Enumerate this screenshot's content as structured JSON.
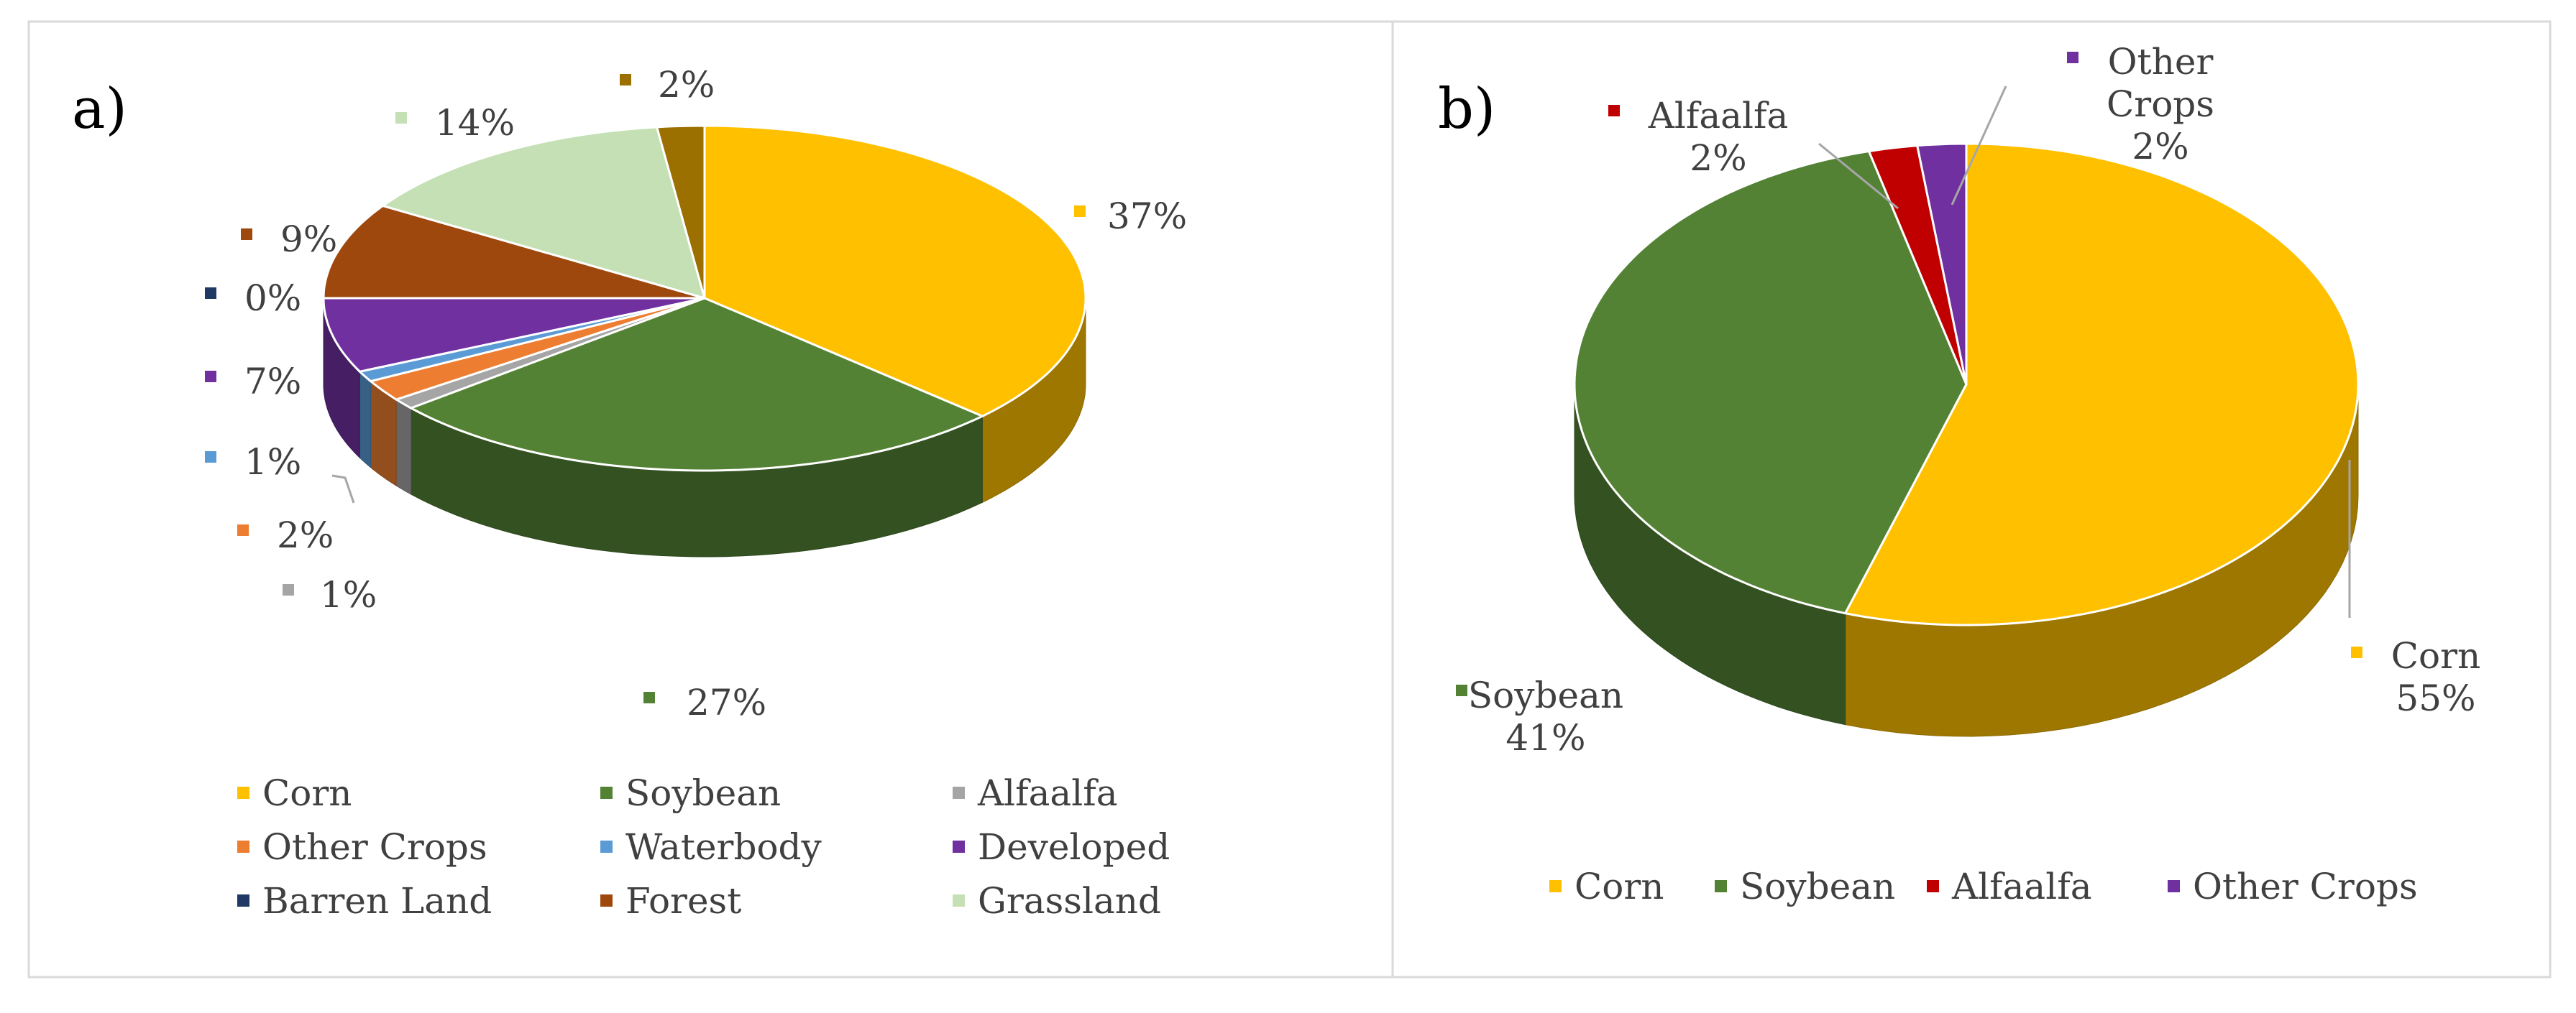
{
  "panels": [
    {
      "label": "a)"
    },
    {
      "label": "b)"
    }
  ],
  "chart_data": [
    {
      "type": "pie",
      "panel": "a)",
      "categories": [
        "Corn",
        "Soybean",
        "Alfaalfa",
        "Other Crops",
        "Waterbody",
        "Developed",
        "Barren Land",
        "Forest",
        "Grassland"
      ],
      "values": [
        37,
        27,
        1,
        2,
        1,
        7,
        0,
        9,
        14
      ],
      "extra_slice": {
        "value": 2,
        "color": "#9C7000",
        "label": "2%"
      },
      "data_labels": [
        "37%",
        "27%",
        "1%",
        "2%",
        "1%",
        "7%",
        "0%",
        "9%",
        "14%"
      ],
      "colors": [
        "#FFC000",
        "#548235",
        "#A5A5A5",
        "#ED7D31",
        "#5B9BD5",
        "#7030A0",
        "#203864",
        "#9E480E",
        "#C5E0B4"
      ],
      "legend_position": "bottom",
      "style": "3d"
    },
    {
      "type": "pie",
      "panel": "b)",
      "categories": [
        "Corn",
        "Soybean",
        "Alfaalfa",
        "Other Crops"
      ],
      "values": [
        55,
        41,
        2,
        2
      ],
      "data_labels": [
        "Corn\n55%",
        "Soybean\n41%",
        "Alfaalfa\n2%",
        "Other\nCrops\n2%"
      ],
      "colors": [
        "#FFC000",
        "#548235",
        "#C00000",
        "#7030A0"
      ],
      "legend_position": "bottom",
      "style": "3d"
    }
  ]
}
